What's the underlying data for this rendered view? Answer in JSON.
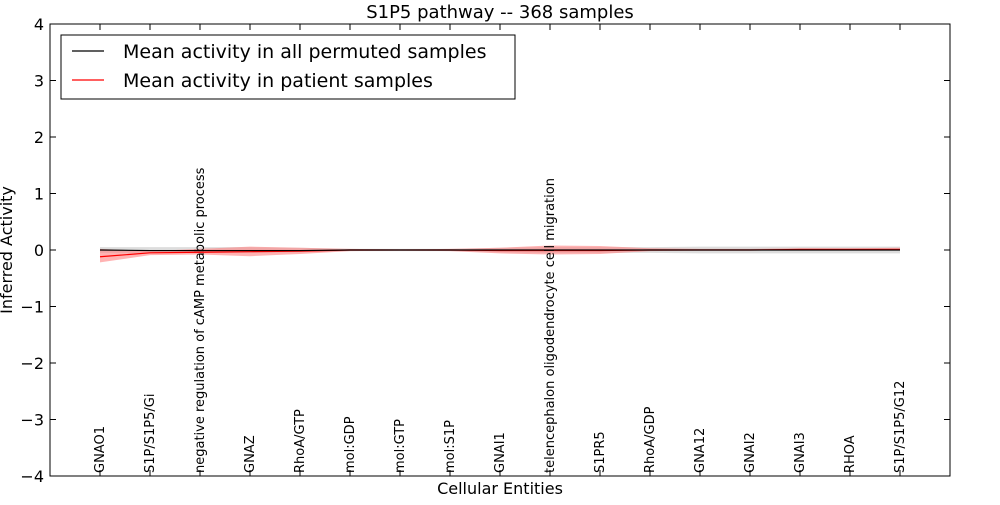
{
  "chart_data": {
    "type": "line",
    "title": "S1P5 pathway -- 368 samples",
    "xlabel": "Cellular Entities",
    "ylabel": "Inferred Activity",
    "ylim": [
      -4,
      4
    ],
    "yticks": [
      4,
      3,
      2,
      1,
      0,
      -1,
      -2,
      -3,
      -4
    ],
    "ytick_labels": [
      "4",
      "3",
      "2",
      "1",
      "0",
      "−1",
      "−2",
      "−3",
      "−4"
    ],
    "categories": [
      "GNAO1",
      "S1P/S1P5/Gi",
      "negative regulation of cAMP metabolic process",
      "GNAZ",
      "RhoA/GTP",
      "mol:GDP",
      "mol:GTP",
      "mol:S1P",
      "GNAI1",
      "telencephalon oligodendrocyte cell migration",
      "S1PR5",
      "RhoA/GDP",
      "GNA12",
      "GNAI2",
      "GNAI3",
      "RHOA",
      "S1P/S1P5/G12"
    ],
    "legend": {
      "position": "top-left",
      "entries": [
        {
          "label": "Mean activity in all permuted samples",
          "color": "#000000"
        },
        {
          "label": "Mean activity in patient samples",
          "color": "#ff0000"
        }
      ]
    },
    "series": [
      {
        "name": "Mean activity in all permuted samples",
        "color": "#000000",
        "band_color": "#bbbbbb",
        "values": [
          0.0,
          -0.01,
          -0.01,
          -0.01,
          -0.01,
          0.0,
          0.0,
          0.0,
          0.0,
          0.0,
          0.0,
          0.0,
          0.0,
          0.0,
          0.0,
          0.0,
          0.0
        ],
        "lower": [
          -0.05,
          -0.05,
          -0.05,
          -0.05,
          -0.04,
          -0.02,
          -0.02,
          -0.02,
          -0.04,
          -0.05,
          -0.05,
          -0.05,
          -0.06,
          -0.06,
          -0.06,
          -0.06,
          -0.06
        ],
        "upper": [
          0.05,
          0.05,
          0.05,
          0.05,
          0.04,
          0.02,
          0.02,
          0.02,
          0.04,
          0.05,
          0.05,
          0.05,
          0.06,
          0.06,
          0.06,
          0.06,
          0.06
        ]
      },
      {
        "name": "Mean activity in patient samples",
        "color": "#ff0000",
        "band_color": "#ff8080",
        "values": [
          -0.12,
          -0.05,
          -0.04,
          -0.03,
          -0.02,
          0.0,
          0.0,
          0.0,
          -0.01,
          -0.01,
          -0.01,
          0.0,
          0.0,
          0.0,
          0.01,
          0.01,
          0.01
        ],
        "lower": [
          -0.22,
          -0.09,
          -0.08,
          -0.11,
          -0.07,
          -0.02,
          -0.01,
          -0.02,
          -0.06,
          -0.08,
          -0.07,
          -0.02,
          -0.01,
          -0.01,
          -0.01,
          -0.01,
          -0.01
        ],
        "upper": [
          0.02,
          -0.02,
          0.02,
          0.06,
          0.04,
          0.02,
          0.01,
          0.02,
          0.04,
          0.08,
          0.07,
          0.03,
          0.02,
          0.02,
          0.03,
          0.03,
          0.04
        ]
      }
    ]
  }
}
